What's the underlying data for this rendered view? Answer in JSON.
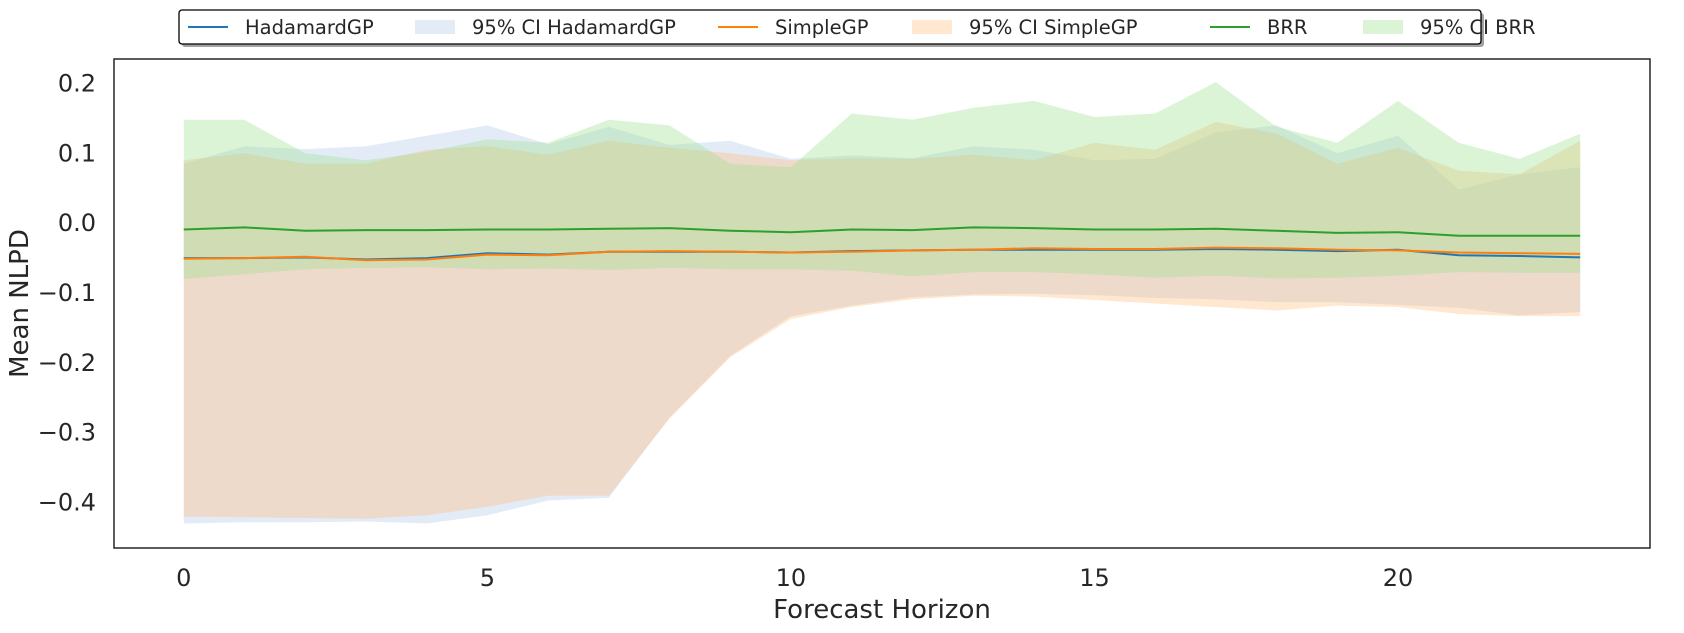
{
  "chart_data": {
    "type": "line",
    "title": "",
    "xlabel": "Forecast Horizon",
    "ylabel": "Mean NLPD",
    "xlim": [
      -1.15,
      24.15
    ],
    "ylim": [
      -0.465,
      0.235
    ],
    "xticks": [
      0,
      5,
      10,
      15,
      20
    ],
    "yticks": [
      -0.4,
      -0.3,
      -0.2,
      -0.1,
      0.0,
      0.1,
      0.2
    ],
    "ytick_labels": [
      "−0.4",
      "−0.3",
      "−0.2",
      "−0.1",
      "0.0",
      "0.1",
      "0.2"
    ],
    "grid": false,
    "legend": {
      "placement": "top-center",
      "columns": 6
    },
    "x": [
      0,
      1,
      2,
      3,
      4,
      5,
      6,
      7,
      8,
      9,
      10,
      11,
      12,
      13,
      14,
      15,
      16,
      17,
      18,
      19,
      20,
      21,
      22,
      23
    ],
    "series": [
      {
        "name": "HadamardGP",
        "color": "#1f77b4",
        "mean": [
          -0.05,
          -0.05,
          -0.049,
          -0.052,
          -0.05,
          -0.043,
          -0.045,
          -0.041,
          -0.041,
          -0.041,
          -0.042,
          -0.04,
          -0.039,
          -0.038,
          -0.038,
          -0.038,
          -0.038,
          -0.037,
          -0.038,
          -0.04,
          -0.038,
          -0.046,
          -0.047,
          -0.049
        ],
        "ci_name": "95% CI HadamardGP",
        "ci_color": "#aec7e8",
        "ci_lower": [
          -0.43,
          -0.428,
          -0.428,
          -0.427,
          -0.43,
          -0.418,
          -0.397,
          -0.393,
          -0.278,
          -0.19,
          -0.133,
          -0.118,
          -0.106,
          -0.102,
          -0.101,
          -0.103,
          -0.107,
          -0.109,
          -0.113,
          -0.113,
          -0.117,
          -0.121,
          -0.132,
          -0.127
        ],
        "ci_upper": [
          0.085,
          0.11,
          0.106,
          0.11,
          0.125,
          0.14,
          0.113,
          0.138,
          0.112,
          0.118,
          0.092,
          0.097,
          0.093,
          0.11,
          0.105,
          0.09,
          0.092,
          0.13,
          0.14,
          0.1,
          0.125,
          0.048,
          0.07,
          0.08
        ]
      },
      {
        "name": "SimpleGP",
        "color": "#ff7f0e",
        "mean": [
          -0.051,
          -0.05,
          -0.048,
          -0.053,
          -0.052,
          -0.045,
          -0.046,
          -0.041,
          -0.04,
          -0.041,
          -0.042,
          -0.041,
          -0.039,
          -0.038,
          -0.036,
          -0.037,
          -0.037,
          -0.035,
          -0.036,
          -0.038,
          -0.039,
          -0.042,
          -0.043,
          -0.044
        ],
        "ci_name": "95% CI SimpleGP",
        "ci_color": "#ffbb78",
        "ci_lower": [
          -0.42,
          -0.421,
          -0.422,
          -0.423,
          -0.418,
          -0.406,
          -0.39,
          -0.39,
          -0.28,
          -0.192,
          -0.137,
          -0.12,
          -0.109,
          -0.104,
          -0.105,
          -0.11,
          -0.115,
          -0.12,
          -0.125,
          -0.118,
          -0.12,
          -0.13,
          -0.133,
          -0.133
        ],
        "ci_upper": [
          0.09,
          0.1,
          0.085,
          0.085,
          0.105,
          0.11,
          0.098,
          0.118,
          0.108,
          0.1,
          0.09,
          0.093,
          0.092,
          0.098,
          0.09,
          0.115,
          0.105,
          0.145,
          0.128,
          0.085,
          0.108,
          0.075,
          0.07,
          0.118
        ]
      },
      {
        "name": "BRR",
        "color": "#2ca02c",
        "mean": [
          -0.009,
          -0.006,
          -0.011,
          -0.01,
          -0.01,
          -0.009,
          -0.009,
          -0.008,
          -0.007,
          -0.011,
          -0.013,
          -0.009,
          -0.01,
          -0.006,
          -0.007,
          -0.009,
          -0.009,
          -0.008,
          -0.011,
          -0.014,
          -0.013,
          -0.018,
          -0.018,
          -0.018
        ],
        "ci_name": "95% CI BRR",
        "ci_color": "#98df8a",
        "ci_lower": [
          -0.08,
          -0.073,
          -0.066,
          -0.064,
          -0.063,
          -0.066,
          -0.065,
          -0.067,
          -0.064,
          -0.066,
          -0.066,
          -0.068,
          -0.076,
          -0.07,
          -0.07,
          -0.073,
          -0.078,
          -0.075,
          -0.079,
          -0.078,
          -0.075,
          -0.07,
          -0.071,
          -0.071
        ],
        "ci_upper": [
          0.148,
          0.148,
          0.1,
          0.09,
          0.102,
          0.12,
          0.115,
          0.148,
          0.14,
          0.085,
          0.08,
          0.157,
          0.148,
          0.165,
          0.175,
          0.152,
          0.157,
          0.202,
          0.138,
          0.115,
          0.175,
          0.115,
          0.092,
          0.128
        ]
      }
    ]
  }
}
